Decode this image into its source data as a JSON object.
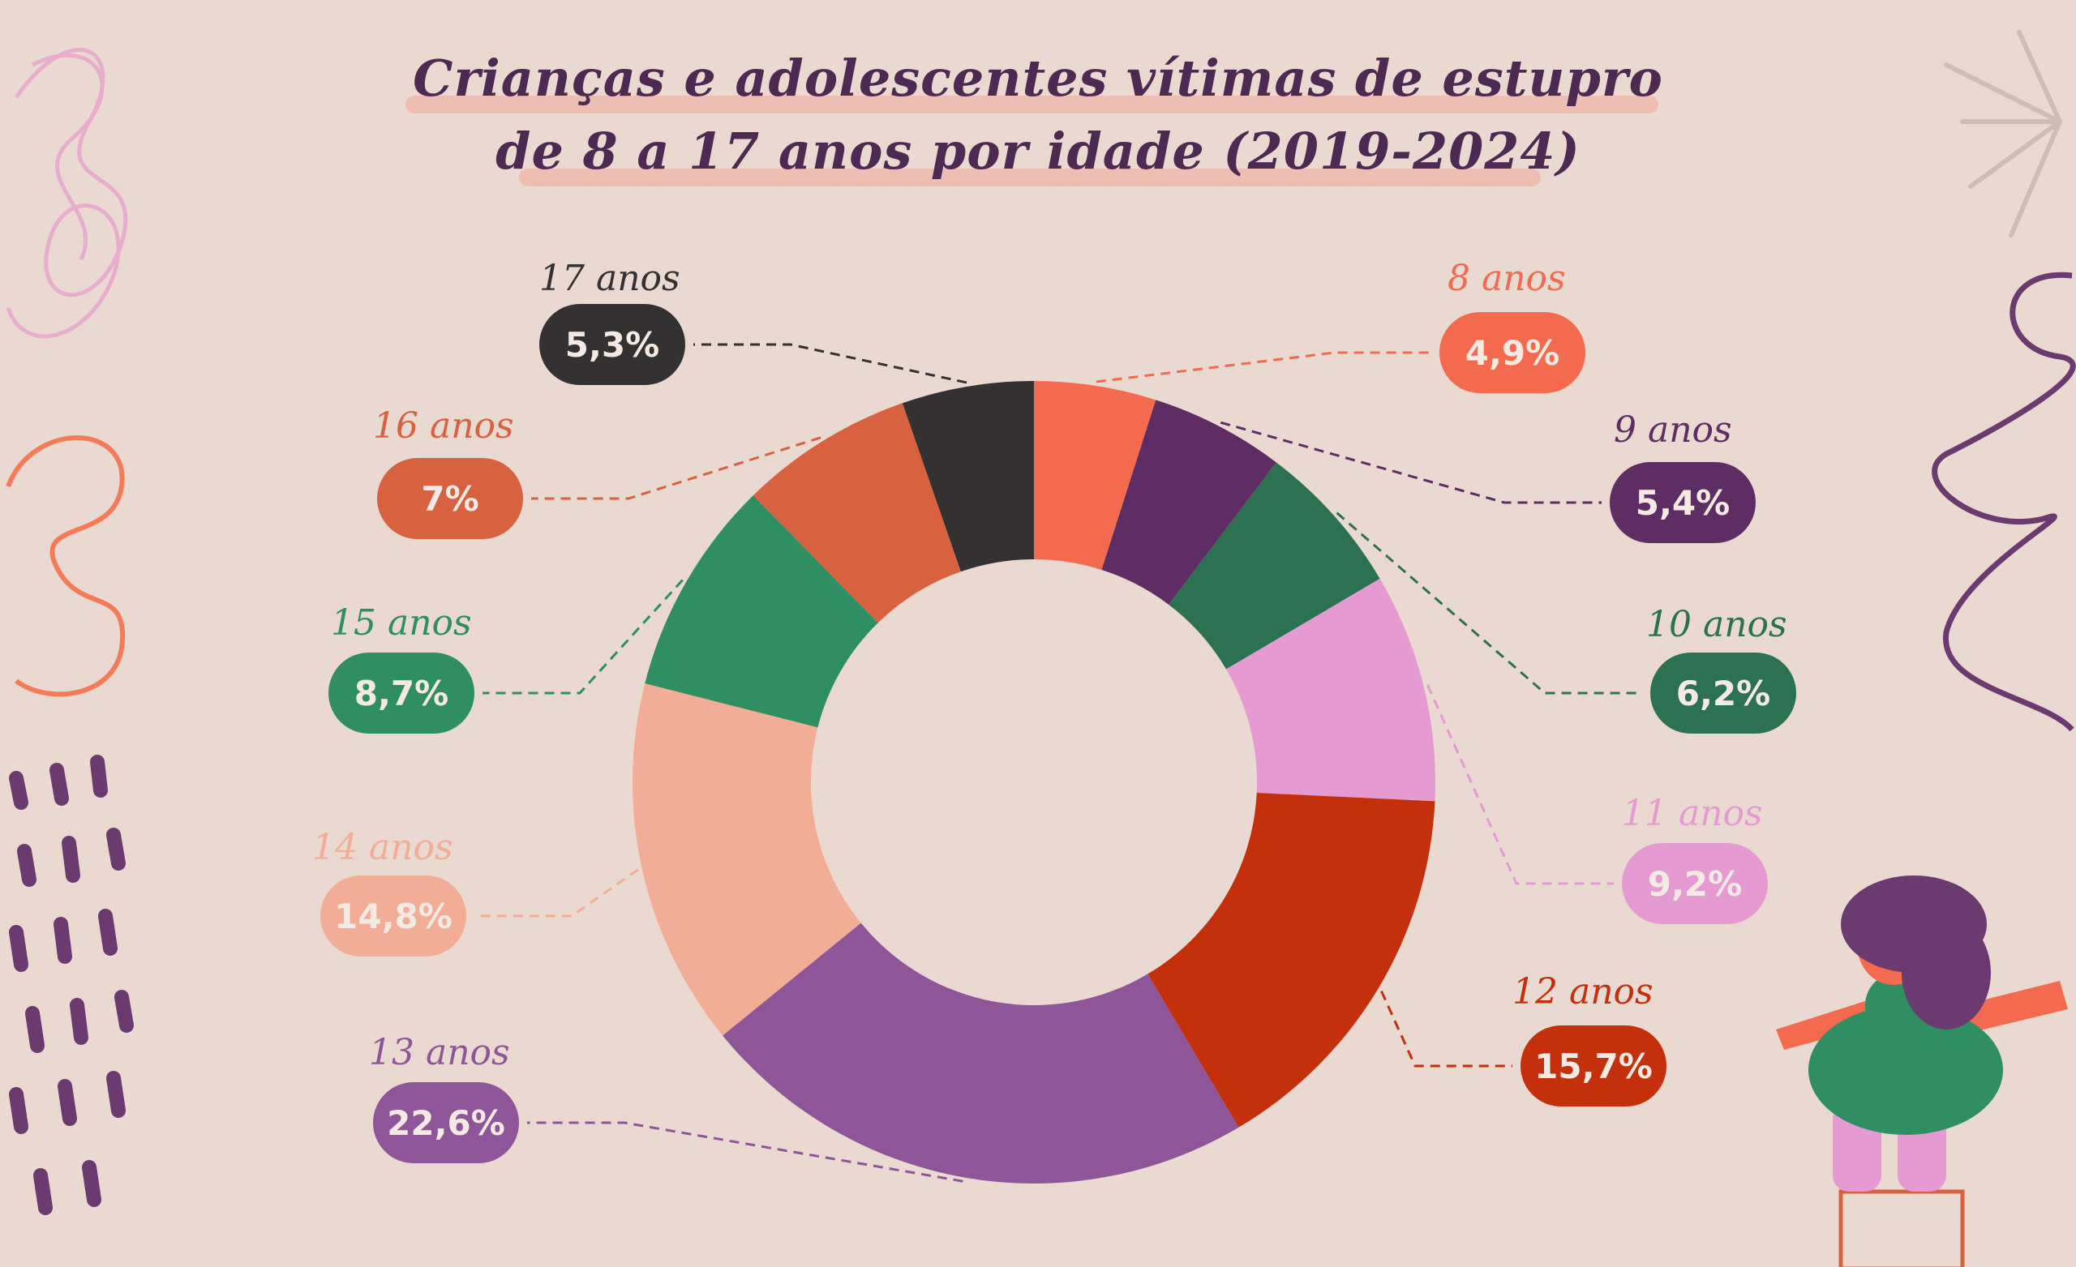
{
  "title": {
    "line1": "Crianças e adolescentes vítimas de estupro",
    "line2": "de 8 a 17 anos por idade (2019-2024)"
  },
  "chart_data": {
    "type": "pie",
    "variant": "donut",
    "title": "Crianças e adolescentes vítimas de estupro de 8 a 17 anos por idade (2019-2024)",
    "categories": [
      "8 anos",
      "9 anos",
      "10 anos",
      "11 anos",
      "12 anos",
      "13 anos",
      "14 anos",
      "15 anos",
      "16 anos",
      "17 anos"
    ],
    "values": [
      4.9,
      5.4,
      6.2,
      9.2,
      15.7,
      22.6,
      14.8,
      8.7,
      7.0,
      5.3
    ],
    "labels": [
      "4,9%",
      "5,4%",
      "6,2%",
      "9,2%",
      "15,7%",
      "22,6%",
      "14,8%",
      "8,7%",
      "7%",
      "5,3%"
    ],
    "colors": [
      "#f46a4e",
      "#5e2d63",
      "#2c7252",
      "#e59ad2",
      "#c4300c",
      "#8e5598",
      "#f2ad96",
      "#2f8f63",
      "#d8613f",
      "#333131"
    ],
    "label_colors": [
      "#f46a4e",
      "#5e2d63",
      "#2c7252",
      "#e59ad2",
      "#c4300c",
      "#8e5598",
      "#f2ad96",
      "#2f8f63",
      "#d8613f",
      "#333131"
    ]
  }
}
